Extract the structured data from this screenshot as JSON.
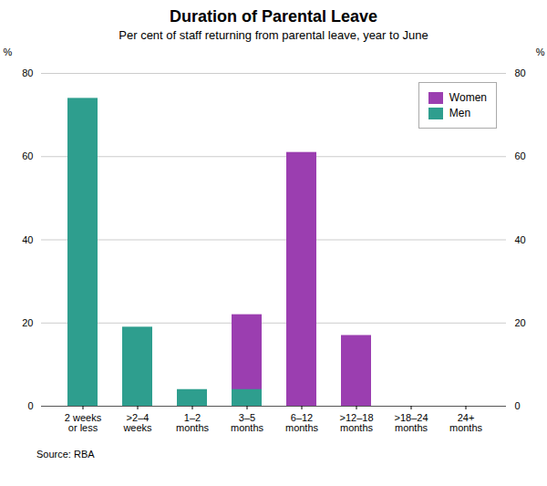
{
  "chart_data": {
    "type": "bar",
    "title": "Duration of Parental Leave",
    "subtitle": "Per cent of staff returning from parental leave, year to June",
    "source": "Source: RBA",
    "categories": [
      "2 weeks\nor less",
      ">2–4\nweeks",
      "1–2\nmonths",
      "3–5\nmonths",
      "6–12\nmonths",
      ">12–18\nmonths",
      ">18–24\nmonths",
      "24+\nmonths"
    ],
    "series": [
      {
        "name": "Women",
        "color": "#9B3EB0",
        "values": [
          0,
          0,
          0,
          22,
          61,
          17,
          0,
          0
        ]
      },
      {
        "name": "Men",
        "color": "#2E9E8E",
        "values": [
          74,
          19,
          4,
          4,
          0,
          0,
          0,
          0
        ]
      }
    ],
    "ylabel": "%",
    "y2label": "%",
    "ylim": [
      0,
      80
    ],
    "yticks": [
      0,
      20,
      40,
      60,
      80
    ],
    "y2lim": [
      0,
      80
    ],
    "y2ticks": [
      0,
      20,
      40,
      60,
      80
    ],
    "grid": true,
    "legend": "upper right"
  }
}
